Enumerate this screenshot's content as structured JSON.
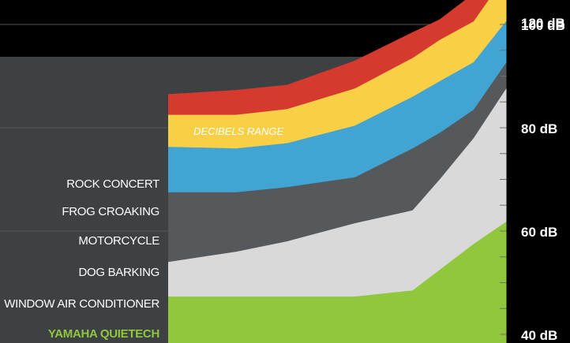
{
  "chart_data": {
    "type": "area",
    "title": "DECIBELS RANGE",
    "y_unit": "dB",
    "ylim": [
      37,
      123
    ],
    "y_ticks": [
      {
        "value": 120,
        "label": "120 dB"
      },
      {
        "value": 100,
        "label": "100 dB"
      },
      {
        "value": 80,
        "label": "80 dB"
      },
      {
        "value": 60,
        "label": "60 dB"
      },
      {
        "value": 40,
        "label": "40 dB"
      }
    ],
    "minor_tick_step": 5,
    "x_progress": [
      0,
      0.2,
      0.35,
      0.55,
      0.72,
      0.8,
      0.9,
      1.0
    ],
    "series": [
      {
        "name": "ROCK CONCERT",
        "color": "#d63a2e",
        "upper": [
          86.5,
          87.3,
          88.3,
          93,
          98.5,
          101,
          106,
          122
        ]
      },
      {
        "name": "FROG CROAKING",
        "color": "#f8cf45",
        "upper": [
          82.5,
          82.5,
          83.6,
          87.6,
          93.5,
          97,
          100.6,
          110
        ]
      },
      {
        "name": "MOTORCYCLE",
        "color": "#41a4d3",
        "upper": [
          76.3,
          76,
          77,
          80.4,
          86,
          89,
          92.7,
          101
        ]
      },
      {
        "name": "DOG BARKING",
        "color": "#55595c",
        "upper": [
          67.5,
          67.5,
          68.5,
          70.4,
          76,
          79,
          83.5,
          93
        ]
      },
      {
        "name": "WINDOW AIR CONDITIONER",
        "color": "#d9d9d9",
        "upper": [
          54,
          56,
          58,
          61.5,
          64,
          70,
          78,
          88
        ]
      },
      {
        "name": "YAMAHA QUIETECH",
        "color": "#90c73c",
        "upper": [
          47.3,
          47.3,
          47.3,
          47.3,
          48.5,
          52.5,
          57.5,
          62
        ]
      }
    ],
    "highlight_color": "#90c73c"
  }
}
